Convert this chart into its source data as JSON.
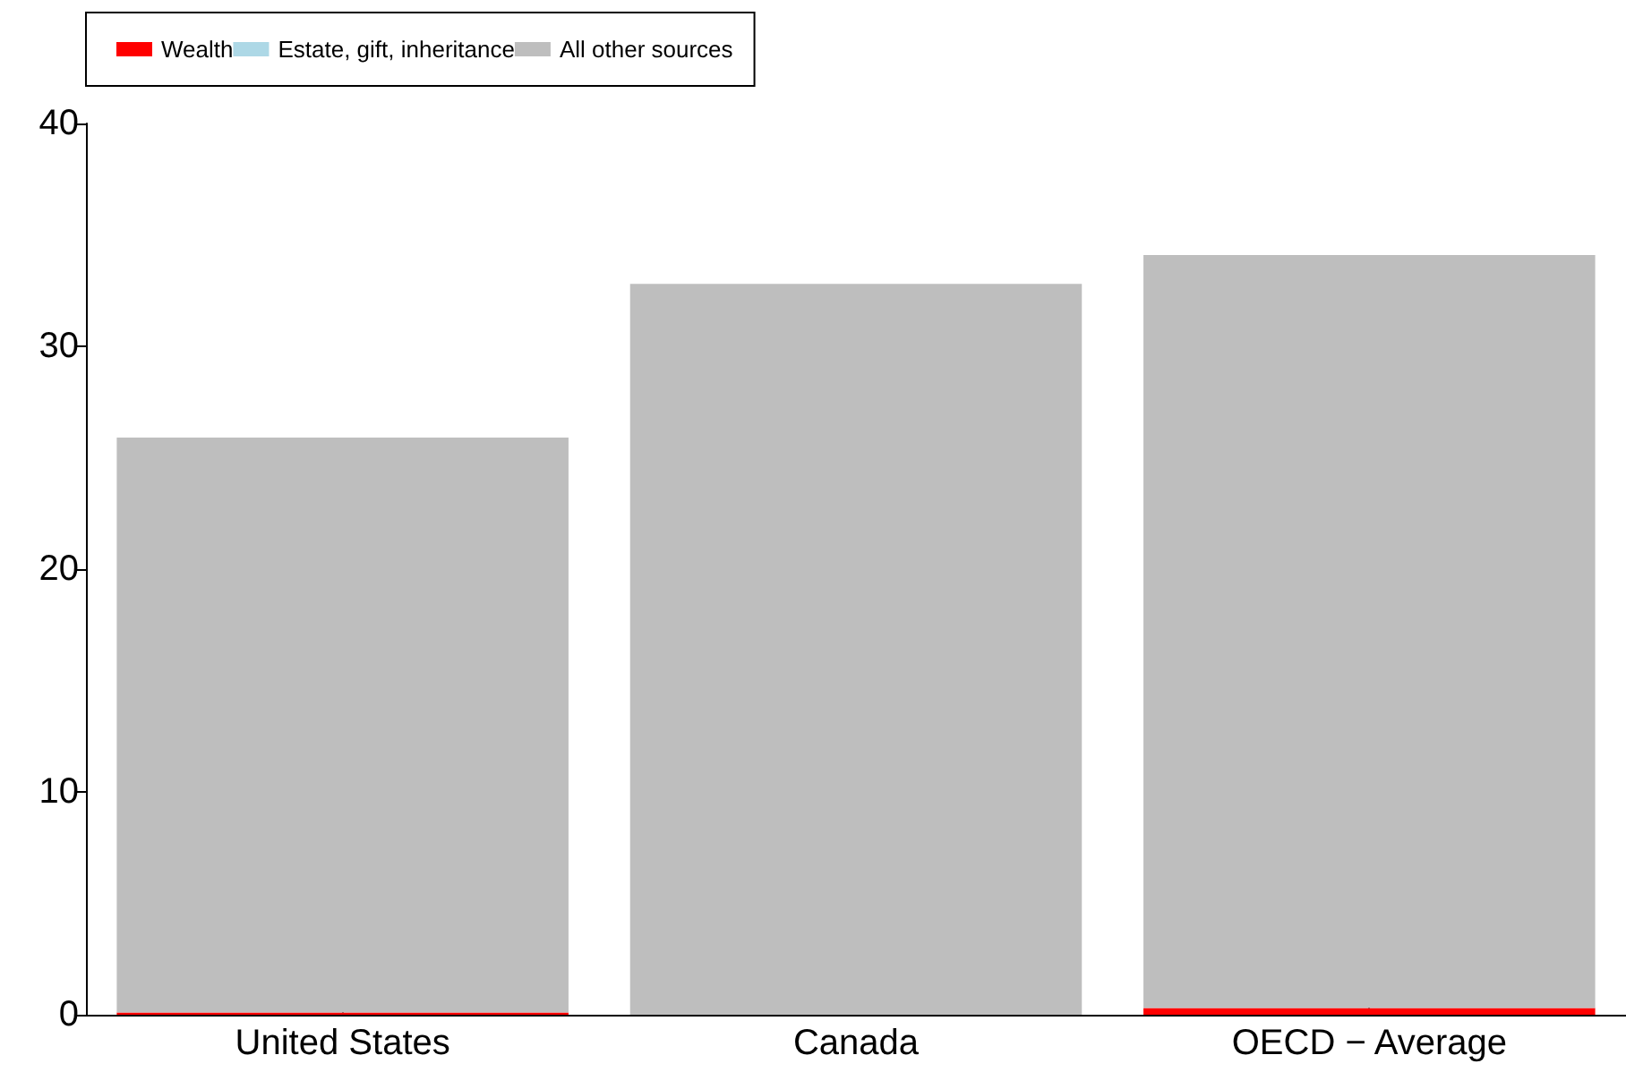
{
  "chart_data": {
    "type": "bar",
    "stacked": true,
    "categories": [
      "United States",
      "Canada",
      "OECD − Average"
    ],
    "series": [
      {
        "name": "Wealth",
        "color": "#ff0000",
        "values": [
          0.1,
          0,
          0.3
        ]
      },
      {
        "name": "Estate, gift, inheritance",
        "color": "#add8e6",
        "values": [
          0,
          0,
          0
        ]
      },
      {
        "name": "All other sources",
        "color": "#bebebe",
        "values": [
          25.8,
          32.8,
          33.8
        ]
      }
    ],
    "ylim": [
      0,
      40
    ],
    "yticks": [
      0,
      10,
      20,
      30,
      40
    ],
    "grid": false,
    "legend": "top"
  }
}
